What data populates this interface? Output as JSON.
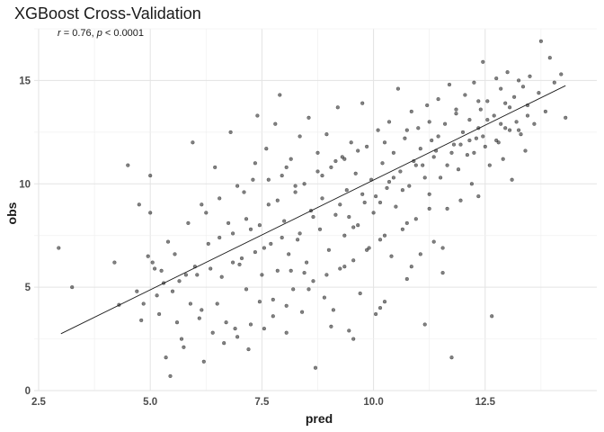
{
  "chart_data": {
    "type": "scatter",
    "title": "XGBoost Cross-Validation",
    "annotation": {
      "r_label": "r",
      "r_value": " = 0.76, ",
      "p_label": "p",
      "p_value": " < 0.0001"
    },
    "xlabel": "pred",
    "ylabel": "obs",
    "xlim": [
      2.4,
      15.0
    ],
    "ylim": [
      0,
      17.5
    ],
    "xticks": [
      2.5,
      5.0,
      7.5,
      10.0,
      12.5
    ],
    "xtick_labels": [
      "2.5",
      "5.0",
      "7.5",
      "10.0",
      "12.5"
    ],
    "yticks": [
      0,
      5,
      10,
      15
    ],
    "ytick_labels": [
      "0",
      "5",
      "10",
      "15"
    ],
    "grid": true,
    "point_color": "#1a1a1a",
    "point_alpha": 0.55,
    "regression_line": {
      "x": [
        3.0,
        14.3
      ],
      "y": [
        2.75,
        14.75
      ]
    },
    "points": [
      [
        2.95,
        6.9
      ],
      [
        3.25,
        5.0
      ],
      [
        4.2,
        6.2
      ],
      [
        4.3,
        4.15
      ],
      [
        4.5,
        10.9
      ],
      [
        4.7,
        4.8
      ],
      [
        4.75,
        9.0
      ],
      [
        4.8,
        3.4
      ],
      [
        5.0,
        10.4
      ],
      [
        5.0,
        8.6
      ],
      [
        4.95,
        6.5
      ],
      [
        5.05,
        6.2
      ],
      [
        5.1,
        5.9
      ],
      [
        5.2,
        3.7
      ],
      [
        5.3,
        5.2
      ],
      [
        5.35,
        1.6
      ],
      [
        5.45,
        0.7
      ],
      [
        5.5,
        4.8
      ],
      [
        5.6,
        3.3
      ],
      [
        5.7,
        2.5
      ],
      [
        5.8,
        5.6
      ],
      [
        5.9,
        4.2
      ],
      [
        5.95,
        12.0
      ],
      [
        6.0,
        6.0
      ],
      [
        6.1,
        3.5
      ],
      [
        6.2,
        1.4
      ],
      [
        6.3,
        7.1
      ],
      [
        6.4,
        2.8
      ],
      [
        6.45,
        10.8
      ],
      [
        6.5,
        4.2
      ],
      [
        6.55,
        9.3
      ],
      [
        6.6,
        5.5
      ],
      [
        6.7,
        3.3
      ],
      [
        6.8,
        12.5
      ],
      [
        6.85,
        7.6
      ],
      [
        6.9,
        3.0
      ],
      [
        7.0,
        6.1
      ],
      [
        7.1,
        9.6
      ],
      [
        7.15,
        4.9
      ],
      [
        7.2,
        2.0
      ],
      [
        7.3,
        10.2
      ],
      [
        7.35,
        6.7
      ],
      [
        7.4,
        13.3
      ],
      [
        7.45,
        8.0
      ],
      [
        7.5,
        5.6
      ],
      [
        7.55,
        3.0
      ],
      [
        7.6,
        11.7
      ],
      [
        7.65,
        9.0
      ],
      [
        7.7,
        7.1
      ],
      [
        7.75,
        4.4
      ],
      [
        7.8,
        12.9
      ],
      [
        7.85,
        5.8
      ],
      [
        7.9,
        14.3
      ],
      [
        7.95,
        10.4
      ],
      [
        8.0,
        8.2
      ],
      [
        8.05,
        2.8
      ],
      [
        8.1,
        6.6
      ],
      [
        8.15,
        11.2
      ],
      [
        8.2,
        4.9
      ],
      [
        8.25,
        9.6
      ],
      [
        8.3,
        7.3
      ],
      [
        8.35,
        12.3
      ],
      [
        8.4,
        3.8
      ],
      [
        8.45,
        10.0
      ],
      [
        8.5,
        6.2
      ],
      [
        8.55,
        13.2
      ],
      [
        8.6,
        8.7
      ],
      [
        8.65,
        5.3
      ],
      [
        8.7,
        1.1
      ],
      [
        8.75,
        11.5
      ],
      [
        8.8,
        7.8
      ],
      [
        8.85,
        9.3
      ],
      [
        8.9,
        4.5
      ],
      [
        8.95,
        12.4
      ],
      [
        9.0,
        6.8
      ],
      [
        9.05,
        10.8
      ],
      [
        9.1,
        3.9
      ],
      [
        9.15,
        8.5
      ],
      [
        9.2,
        13.7
      ],
      [
        9.25,
        5.9
      ],
      [
        9.3,
        11.3
      ],
      [
        9.35,
        7.5
      ],
      [
        9.4,
        9.7
      ],
      [
        9.45,
        2.9
      ],
      [
        9.5,
        12.0
      ],
      [
        9.55,
        6.3
      ],
      [
        9.6,
        10.5
      ],
      [
        9.65,
        8.0
      ],
      [
        9.7,
        4.7
      ],
      [
        9.75,
        13.9
      ],
      [
        9.8,
        9.1
      ],
      [
        9.85,
        11.8
      ],
      [
        9.9,
        6.9
      ],
      [
        9.95,
        10.2
      ],
      [
        10.0,
        8.6
      ],
      [
        10.05,
        3.7
      ],
      [
        10.1,
        12.6
      ],
      [
        10.15,
        7.3
      ],
      [
        10.2,
        11.0
      ],
      [
        10.25,
        4.3
      ],
      [
        10.3,
        9.8
      ],
      [
        10.35,
        13.0
      ],
      [
        10.4,
        6.5
      ],
      [
        10.45,
        11.5
      ],
      [
        10.5,
        8.9
      ],
      [
        10.55,
        14.6
      ],
      [
        10.6,
        10.6
      ],
      [
        10.65,
        7.8
      ],
      [
        10.7,
        12.2
      ],
      [
        10.75,
        5.4
      ],
      [
        10.8,
        9.9
      ],
      [
        10.85,
        13.5
      ],
      [
        10.9,
        11.1
      ],
      [
        10.95,
        8.3
      ],
      [
        11.0,
        12.7
      ],
      [
        11.05,
        6.6
      ],
      [
        11.1,
        10.9
      ],
      [
        11.15,
        3.2
      ],
      [
        11.2,
        13.8
      ],
      [
        11.25,
        9.5
      ],
      [
        11.3,
        12.1
      ],
      [
        11.35,
        7.2
      ],
      [
        11.4,
        11.6
      ],
      [
        11.45,
        14.1
      ],
      [
        11.5,
        10.3
      ],
      [
        11.55,
        5.7
      ],
      [
        11.6,
        12.9
      ],
      [
        11.65,
        8.8
      ],
      [
        11.7,
        14.8
      ],
      [
        11.75,
        1.6
      ],
      [
        11.8,
        11.9
      ],
      [
        11.85,
        13.4
      ],
      [
        11.9,
        10.7
      ],
      [
        11.95,
        9.2
      ],
      [
        12.0,
        12.5
      ],
      [
        12.05,
        14.3
      ],
      [
        12.1,
        11.4
      ],
      [
        12.15,
        13.1
      ],
      [
        12.2,
        10.0
      ],
      [
        12.25,
        14.9
      ],
      [
        12.3,
        12.2
      ],
      [
        12.35,
        9.4
      ],
      [
        12.4,
        13.6
      ],
      [
        12.45,
        15.9
      ],
      [
        12.5,
        11.8
      ],
      [
        12.55,
        14.0
      ],
      [
        12.6,
        10.9
      ],
      [
        12.65,
        3.6
      ],
      [
        12.7,
        13.3
      ],
      [
        12.75,
        15.1
      ],
      [
        12.8,
        12.0
      ],
      [
        12.85,
        14.6
      ],
      [
        12.9,
        11.2
      ],
      [
        12.95,
        13.9
      ],
      [
        13.0,
        15.4
      ],
      [
        13.05,
        12.6
      ],
      [
        13.1,
        10.2
      ],
      [
        13.15,
        14.2
      ],
      [
        13.2,
        13.0
      ],
      [
        13.25,
        15.0
      ],
      [
        13.3,
        12.4
      ],
      [
        13.35,
        14.7
      ],
      [
        13.4,
        11.6
      ],
      [
        13.45,
        13.8
      ],
      [
        13.5,
        15.2
      ],
      [
        13.6,
        12.9
      ],
      [
        13.7,
        14.4
      ],
      [
        13.75,
        16.9
      ],
      [
        13.85,
        13.5
      ],
      [
        13.95,
        16.1
      ],
      [
        14.05,
        14.9
      ],
      [
        14.2,
        15.3
      ],
      [
        14.3,
        13.2
      ],
      [
        6.25,
        8.6
      ],
      [
        5.4,
        7.2
      ],
      [
        6.75,
        8.1
      ],
      [
        7.25,
        7.8
      ],
      [
        8.15,
        5.8
      ],
      [
        8.45,
        5.7
      ],
      [
        9.55,
        7.9
      ],
      [
        10.05,
        9.4
      ],
      [
        10.35,
        10.1
      ],
      [
        11.05,
        11.7
      ],
      [
        11.45,
        12.3
      ],
      [
        12.15,
        12.1
      ],
      [
        12.35,
        12.7
      ],
      [
        12.85,
        12.9
      ],
      [
        11.75,
        11.5
      ],
      [
        12.55,
        13.1
      ],
      [
        13.05,
        13.7
      ],
      [
        9.25,
        9.0
      ],
      [
        8.65,
        8.4
      ],
      [
        7.95,
        7.4
      ],
      [
        7.05,
        6.4
      ],
      [
        6.35,
        5.9
      ],
      [
        5.65,
        5.3
      ],
      [
        5.15,
        4.6
      ],
      [
        4.85,
        4.2
      ],
      [
        9.75,
        9.5
      ],
      [
        10.45,
        10.3
      ],
      [
        10.95,
        10.9
      ],
      [
        11.35,
        11.3
      ],
      [
        11.95,
        11.9
      ],
      [
        12.45,
        12.3
      ],
      [
        12.95,
        12.7
      ],
      [
        13.45,
        13.3
      ],
      [
        8.35,
        7.6
      ],
      [
        7.55,
        6.9
      ],
      [
        6.85,
        6.2
      ],
      [
        6.05,
        5.6
      ],
      [
        9.45,
        8.4
      ],
      [
        10.15,
        9.1
      ],
      [
        10.65,
        9.7
      ],
      [
        11.15,
        10.3
      ],
      [
        11.65,
        10.9
      ],
      [
        12.25,
        11.5
      ],
      [
        12.75,
        12.1
      ],
      [
        13.25,
        12.6
      ],
      [
        8.85,
        10.4
      ],
      [
        9.15,
        11.1
      ],
      [
        9.65,
        11.6
      ],
      [
        10.25,
        12.0
      ],
      [
        10.75,
        12.6
      ],
      [
        11.25,
        13.0
      ],
      [
        11.85,
        13.6
      ],
      [
        12.35,
        14.0
      ],
      [
        7.65,
        10.2
      ],
      [
        8.05,
        10.8
      ],
      [
        6.95,
        9.9
      ],
      [
        7.35,
        11.0
      ],
      [
        5.85,
        8.1
      ],
      [
        6.15,
        9.0
      ],
      [
        5.55,
        6.6
      ],
      [
        5.25,
        5.8
      ],
      [
        6.55,
        7.4
      ],
      [
        7.15,
        8.3
      ],
      [
        7.85,
        9.2
      ],
      [
        8.25,
        9.9
      ],
      [
        8.75,
        10.6
      ],
      [
        9.35,
        11.2
      ],
      [
        7.45,
        4.3
      ],
      [
        7.75,
        3.6
      ],
      [
        8.05,
        4.1
      ],
      [
        8.55,
        4.9
      ],
      [
        8.95,
        5.6
      ],
      [
        9.35,
        6.0
      ],
      [
        9.85,
        6.8
      ],
      [
        10.25,
        7.5
      ],
      [
        10.75,
        8.1
      ],
      [
        11.25,
        8.8
      ],
      [
        6.65,
        2.3
      ],
      [
        6.95,
        2.6
      ],
      [
        7.25,
        3.2
      ],
      [
        5.75,
        2.1
      ],
      [
        6.15,
        3.9
      ],
      [
        9.05,
        3.1
      ],
      [
        9.55,
        2.5
      ],
      [
        10.15,
        4.0
      ],
      [
        10.85,
        6.0
      ],
      [
        11.55,
        6.9
      ]
    ]
  }
}
